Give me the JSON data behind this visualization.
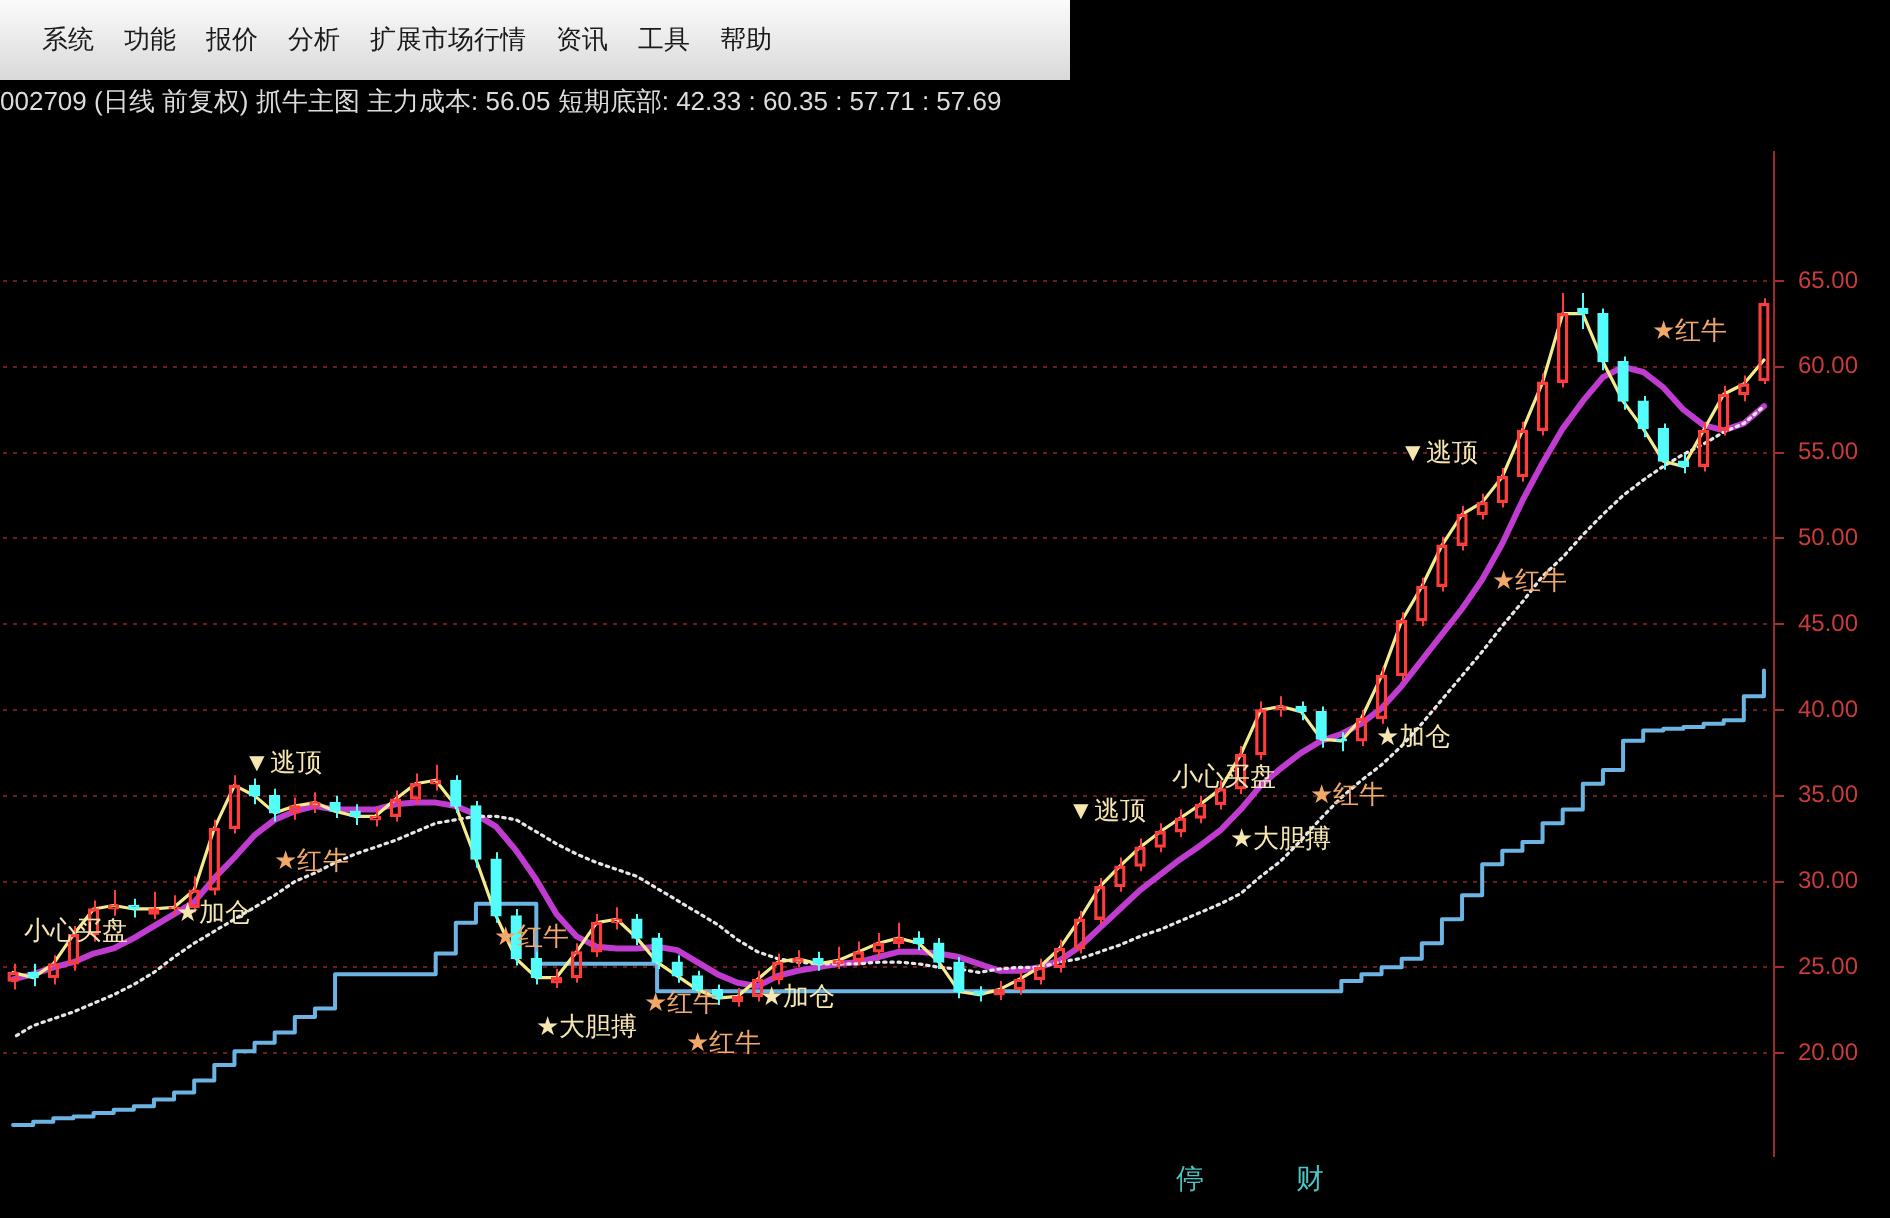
{
  "chart_data": {
    "type": "candlestick",
    "title": "002709 (日线 前复权) 抓牛主图 主力成本: 56.05 短期底部: 42.33 : 60.35 : 57.71 : 57.69",
    "categories": [
      null,
      null,
      null,
      null,
      null,
      null,
      null,
      null,
      null,
      null,
      null,
      null,
      null,
      null,
      null,
      null,
      null,
      null,
      null,
      null,
      null,
      null,
      null,
      null,
      null,
      null,
      null,
      null,
      null,
      null,
      null,
      null,
      null,
      null,
      null,
      null,
      null,
      null,
      null,
      null,
      null,
      null,
      null,
      null,
      null,
      null,
      null,
      null,
      null,
      null,
      null,
      null,
      null,
      null,
      null,
      null,
      null,
      null,
      null,
      null,
      null,
      null,
      null,
      null,
      null,
      null,
      null,
      null,
      null,
      null,
      null,
      null,
      null,
      null,
      null,
      null,
      null,
      null,
      null,
      null,
      null,
      null,
      null,
      null,
      null,
      null,
      null,
      null
    ],
    "ohlc": [
      [
        24.2,
        25.2,
        23.7,
        24.7
      ],
      [
        24.7,
        25.2,
        23.9,
        24.4
      ],
      [
        24.4,
        25.7,
        24.0,
        25.2
      ],
      [
        25.2,
        27.4,
        24.8,
        26.9
      ],
      [
        26.9,
        28.9,
        26.5,
        28.4
      ],
      [
        28.4,
        29.5,
        28.0,
        28.6
      ],
      [
        28.6,
        29.0,
        27.9,
        28.4
      ],
      [
        28.1,
        29.4,
        27.8,
        28.4
      ],
      [
        28.4,
        29.2,
        28.0,
        28.5
      ],
      [
        28.5,
        30.3,
        28.2,
        29.5
      ],
      [
        29.5,
        33.6,
        29.2,
        33.1
      ],
      [
        33.1,
        36.2,
        32.8,
        35.6
      ],
      [
        35.6,
        36.0,
        34.5,
        35.0
      ],
      [
        35.0,
        35.4,
        33.5,
        34.0
      ],
      [
        34.0,
        34.9,
        33.6,
        34.4
      ],
      [
        34.4,
        35.2,
        34.0,
        34.6
      ],
      [
        34.6,
        35.0,
        33.7,
        34.1
      ],
      [
        34.1,
        34.5,
        33.3,
        33.8
      ],
      [
        33.6,
        34.3,
        33.2,
        33.8
      ],
      [
        33.8,
        35.3,
        33.5,
        34.8
      ],
      [
        34.8,
        36.3,
        34.5,
        35.7
      ],
      [
        35.7,
        36.8,
        35.3,
        35.9
      ],
      [
        35.9,
        36.2,
        34.0,
        34.4
      ],
      [
        34.4,
        34.7,
        30.8,
        31.3
      ],
      [
        31.3,
        31.7,
        27.6,
        28.0
      ],
      [
        28.0,
        28.4,
        25.1,
        25.5
      ],
      [
        25.5,
        25.9,
        24.0,
        24.4
      ],
      [
        24.1,
        24.9,
        23.8,
        24.4
      ],
      [
        24.4,
        26.4,
        24.1,
        25.9
      ],
      [
        25.9,
        28.1,
        25.6,
        27.6
      ],
      [
        27.6,
        28.5,
        27.2,
        27.8
      ],
      [
        27.8,
        28.1,
        26.3,
        26.7
      ],
      [
        26.7,
        27.0,
        24.9,
        25.3
      ],
      [
        25.3,
        25.7,
        24.1,
        24.5
      ],
      [
        24.5,
        24.8,
        23.3,
        23.7
      ],
      [
        23.7,
        24.0,
        22.8,
        23.2
      ],
      [
        23.0,
        23.8,
        22.7,
        23.3
      ],
      [
        23.3,
        24.8,
        23.0,
        24.3
      ],
      [
        24.3,
        25.8,
        24.0,
        25.3
      ],
      [
        25.3,
        26.0,
        25.0,
        25.5
      ],
      [
        25.5,
        25.9,
        24.8,
        25.2
      ],
      [
        25.2,
        26.2,
        24.9,
        25.4
      ],
      [
        25.4,
        26.5,
        25.1,
        25.9
      ],
      [
        25.9,
        27.0,
        25.6,
        26.4
      ],
      [
        26.4,
        27.6,
        26.1,
        26.7
      ],
      [
        26.7,
        27.1,
        26.0,
        26.4
      ],
      [
        26.4,
        26.7,
        24.9,
        25.3
      ],
      [
        25.3,
        25.6,
        23.2,
        23.6
      ],
      [
        23.6,
        23.9,
        23.0,
        23.4
      ],
      [
        23.4,
        24.2,
        23.1,
        23.7
      ],
      [
        23.7,
        24.8,
        23.4,
        24.3
      ],
      [
        24.3,
        25.5,
        24.0,
        25.0
      ],
      [
        25.0,
        26.6,
        24.7,
        26.1
      ],
      [
        26.1,
        28.3,
        25.8,
        27.8
      ],
      [
        27.8,
        30.2,
        27.5,
        29.7
      ],
      [
        29.7,
        31.4,
        29.4,
        30.9
      ],
      [
        30.9,
        32.5,
        30.6,
        32.0
      ],
      [
        32.0,
        33.4,
        31.7,
        32.9
      ],
      [
        32.9,
        34.2,
        32.6,
        33.7
      ],
      [
        33.7,
        35.0,
        33.4,
        34.5
      ],
      [
        34.5,
        35.9,
        34.2,
        35.4
      ],
      [
        35.4,
        37.9,
        35.1,
        37.4
      ],
      [
        37.4,
        40.5,
        37.1,
        40.0
      ],
      [
        40.0,
        40.8,
        39.6,
        40.2
      ],
      [
        40.2,
        40.5,
        39.4,
        39.9
      ],
      [
        39.9,
        40.2,
        37.8,
        38.3
      ],
      [
        38.3,
        38.7,
        37.6,
        38.2
      ],
      [
        38.2,
        40.0,
        37.9,
        39.5
      ],
      [
        39.5,
        42.5,
        39.2,
        42.0
      ],
      [
        42.0,
        45.7,
        41.7,
        45.2
      ],
      [
        45.2,
        47.7,
        44.9,
        47.2
      ],
      [
        47.2,
        50.1,
        46.9,
        49.6
      ],
      [
        49.6,
        51.9,
        49.3,
        51.4
      ],
      [
        51.4,
        52.6,
        51.1,
        52.1
      ],
      [
        52.1,
        54.1,
        51.8,
        53.6
      ],
      [
        53.6,
        56.8,
        53.3,
        56.3
      ],
      [
        56.3,
        59.6,
        56.0,
        59.1
      ],
      [
        59.1,
        64.3,
        58.8,
        63.1
      ],
      [
        63.4,
        64.3,
        62.2,
        63.1
      ],
      [
        63.1,
        63.4,
        59.8,
        60.3
      ],
      [
        60.3,
        60.6,
        57.5,
        58.0
      ],
      [
        58.0,
        58.3,
        55.9,
        56.4
      ],
      [
        56.4,
        56.7,
        54.0,
        54.5
      ],
      [
        54.5,
        54.9,
        53.8,
        54.2
      ],
      [
        54.2,
        56.8,
        53.9,
        56.3
      ],
      [
        56.3,
        58.9,
        56.0,
        58.4
      ],
      [
        58.4,
        59.5,
        58.0,
        59.0
      ],
      [
        59.2,
        64.0,
        59.0,
        63.7
      ]
    ],
    "colors": [
      "#ff3c3c",
      "#54fcfc",
      "#ff3c3c",
      "#ff3c3c",
      "#ff3c3c",
      "#ff3c3c",
      "#54fcfc",
      "#ff3c3c",
      "#ff3c3c",
      "#ff3c3c",
      "#ff3c3c",
      "#ff3c3c",
      "#54fcfc",
      "#54fcfc",
      "#ff3c3c",
      "#ff3c3c",
      "#54fcfc",
      "#54fcfc",
      "#ff3c3c",
      "#ff3c3c",
      "#ff3c3c",
      "#ff3c3c",
      "#54fcfc",
      "#54fcfc",
      "#54fcfc",
      "#54fcfc",
      "#54fcfc",
      "#ff3c3c",
      "#ff3c3c",
      "#ff3c3c",
      "#ff3c3c",
      "#54fcfc",
      "#54fcfc",
      "#54fcfc",
      "#54fcfc",
      "#54fcfc",
      "#ff3c3c",
      "#ff3c3c",
      "#ff3c3c",
      "#ff3c3c",
      "#54fcfc",
      "#ff3c3c",
      "#ff3c3c",
      "#ff3c3c",
      "#ff3c3c",
      "#54fcfc",
      "#54fcfc",
      "#54fcfc",
      "#54fcfc",
      "#ff3c3c",
      "#ff3c3c",
      "#ff3c3c",
      "#ff3c3c",
      "#ff3c3c",
      "#ff3c3c",
      "#ff3c3c",
      "#ff3c3c",
      "#ff3c3c",
      "#ff3c3c",
      "#ff3c3c",
      "#ff3c3c",
      "#ff3c3c",
      "#ff3c3c",
      "#ff3c3c",
      "#54fcfc",
      "#54fcfc",
      "#54fcfc",
      "#ff3c3c",
      "#ff3c3c",
      "#ff3c3c",
      "#ff3c3c",
      "#ff3c3c",
      "#ff3c3c",
      "#ff3c3c",
      "#ff3c3c",
      "#ff3c3c",
      "#ff3c3c",
      "#ff3c3c",
      "#54fcfc",
      "#54fcfc",
      "#54fcfc",
      "#54fcfc",
      "#54fcfc",
      "#54fcfc",
      "#ff3c3c",
      "#ff3c3c",
      "#ff3c3c",
      "#ff3c3c"
    ],
    "series": [
      {
        "type": "line",
        "color": "#f4ec8c",
        "values": [
          24.7,
          24.4,
          25.2,
          26.9,
          28.4,
          28.6,
          28.4,
          28.4,
          28.5,
          29.5,
          33.1,
          35.6,
          35.0,
          34.0,
          34.4,
          34.6,
          34.1,
          33.8,
          33.8,
          34.8,
          35.7,
          35.9,
          34.4,
          31.3,
          28.0,
          25.5,
          24.4,
          24.4,
          25.9,
          27.6,
          27.8,
          26.7,
          25.3,
          24.5,
          23.7,
          23.2,
          23.3,
          24.3,
          25.3,
          25.5,
          25.2,
          25.4,
          25.9,
          26.4,
          26.7,
          26.4,
          25.3,
          23.6,
          23.4,
          23.7,
          24.3,
          25.0,
          26.1,
          27.8,
          29.7,
          30.9,
          32.0,
          32.9,
          33.7,
          34.5,
          35.4,
          37.4,
          40.0,
          40.2,
          39.9,
          38.3,
          38.2,
          39.5,
          42.0,
          45.2,
          47.2,
          49.6,
          51.4,
          52.1,
          53.6,
          56.3,
          59.1,
          63.1,
          63.1,
          60.3,
          58.0,
          56.4,
          54.5,
          54.2,
          56.3,
          58.4,
          59.0,
          60.4
        ]
      },
      {
        "type": "line",
        "color": "#c03cd0",
        "values": [
          24.3,
          24.6,
          25.0,
          25.3,
          25.8,
          26.1,
          26.7,
          27.4,
          28.1,
          28.8,
          30.2,
          31.4,
          32.7,
          33.6,
          34.1,
          34.4,
          34.2,
          34.2,
          34.2,
          34.5,
          34.6,
          34.6,
          34.4,
          33.9,
          33.2,
          31.8,
          30.1,
          28.1,
          26.8,
          26.2,
          26.1,
          26.1,
          26.2,
          26.0,
          25.3,
          24.6,
          24.1,
          23.9,
          24.5,
          24.8,
          25.0,
          25.2,
          25.3,
          25.6,
          25.9,
          25.9,
          25.8,
          25.6,
          25.2,
          24.8,
          24.8,
          25.0,
          25.4,
          26.2,
          27.3,
          28.4,
          29.5,
          30.4,
          31.3,
          32.1,
          33.0,
          34.2,
          35.6,
          36.6,
          37.5,
          38.2,
          38.6,
          39.2,
          40.1,
          41.4,
          42.9,
          44.4,
          45.9,
          47.6,
          49.7,
          52.2,
          54.4,
          56.4,
          58.0,
          59.4,
          60.0,
          59.7,
          58.8,
          57.5,
          56.6,
          56.3,
          56.7,
          57.7
        ]
      },
      {
        "type": "line",
        "color": "#e6e6e6",
        "line_style": "dotted",
        "values": [
          20.9,
          21.6,
          22.0,
          22.4,
          22.9,
          23.4,
          24.0,
          24.7,
          25.6,
          26.4,
          27.1,
          27.8,
          28.5,
          29.2,
          30.0,
          30.5,
          31.1,
          31.6,
          32.0,
          32.4,
          32.9,
          33.4,
          33.6,
          33.8,
          33.8,
          33.6,
          32.9,
          32.2,
          31.6,
          31.1,
          30.7,
          30.3,
          29.6,
          28.9,
          28.2,
          27.5,
          26.6,
          25.9,
          25.5,
          25.3,
          25.2,
          25.2,
          25.2,
          25.3,
          25.3,
          25.2,
          25.0,
          24.9,
          24.7,
          24.9,
          25.0,
          25.0,
          25.3,
          25.5,
          25.9,
          26.3,
          26.8,
          27.2,
          27.7,
          28.2,
          28.7,
          29.3,
          30.3,
          31.2,
          32.4,
          33.7,
          34.9,
          35.9,
          36.8,
          37.9,
          39.2,
          40.6,
          42.0,
          43.4,
          44.9,
          46.3,
          47.8,
          48.9,
          50.2,
          51.4,
          52.5,
          53.4,
          54.2,
          54.9,
          55.5,
          56.2,
          56.7,
          57.7
        ]
      },
      {
        "type": "step",
        "color": "#6cb4e4",
        "values": [
          15.8,
          16.0,
          16.2,
          16.3,
          16.5,
          16.7,
          16.9,
          17.3,
          17.7,
          18.4,
          19.3,
          20.1,
          20.6,
          21.2,
          22.1,
          22.6,
          24.6,
          24.6,
          24.6,
          24.6,
          24.6,
          25.8,
          27.6,
          28.7,
          28.7,
          28.7,
          25.2,
          25.2,
          25.2,
          25.2,
          25.2,
          25.2,
          23.6,
          23.6,
          23.6,
          23.6,
          23.6,
          23.6,
          23.6,
          23.6,
          23.6,
          23.6,
          23.6,
          23.6,
          23.6,
          23.6,
          23.6,
          23.6,
          23.6,
          23.6,
          23.6,
          23.6,
          23.6,
          23.6,
          23.6,
          23.6,
          23.6,
          23.6,
          23.6,
          23.6,
          23.6,
          23.6,
          23.6,
          23.6,
          23.6,
          23.6,
          24.2,
          24.6,
          25.0,
          25.5,
          26.4,
          27.8,
          29.2,
          31.0,
          31.8,
          32.3,
          33.4,
          34.2,
          35.7,
          36.5,
          38.2,
          38.8,
          38.9,
          39.0,
          39.2,
          39.4,
          40.8,
          42.3
        ]
      }
    ],
    "ylim": [
      14,
      72.5
    ],
    "yticks": [
      {
        "value": 20,
        "label": "20.00"
      },
      {
        "value": 25,
        "label": "25.00"
      },
      {
        "value": 30,
        "label": "30.00"
      },
      {
        "value": 35,
        "label": "35.00"
      },
      {
        "value": 40,
        "label": "40.00"
      },
      {
        "value": 45,
        "label": "45.00"
      },
      {
        "value": 50,
        "label": "50.00"
      },
      {
        "value": 55,
        "label": "55.00"
      },
      {
        "value": 60,
        "label": "60.00"
      },
      {
        "value": 65,
        "label": "65.00"
      }
    ],
    "grid": "y",
    "annotations": [
      "系统",
      "功能",
      "报价",
      "分析",
      "扩展市场行情",
      "资讯",
      "工具",
      "帮助",
      "停",
      "财",
      "小心买盘",
      "★加仓",
      "▼逃顶",
      "★红牛",
      "★红牛",
      "★大胆搏",
      "★红牛",
      "★红牛",
      "★加仓",
      "▼逃顶",
      "小心买盘",
      "★大胆搏",
      "★红牛",
      "★加仓",
      "▼逃顶",
      "★红牛",
      "★红牛"
    ]
  }
}
